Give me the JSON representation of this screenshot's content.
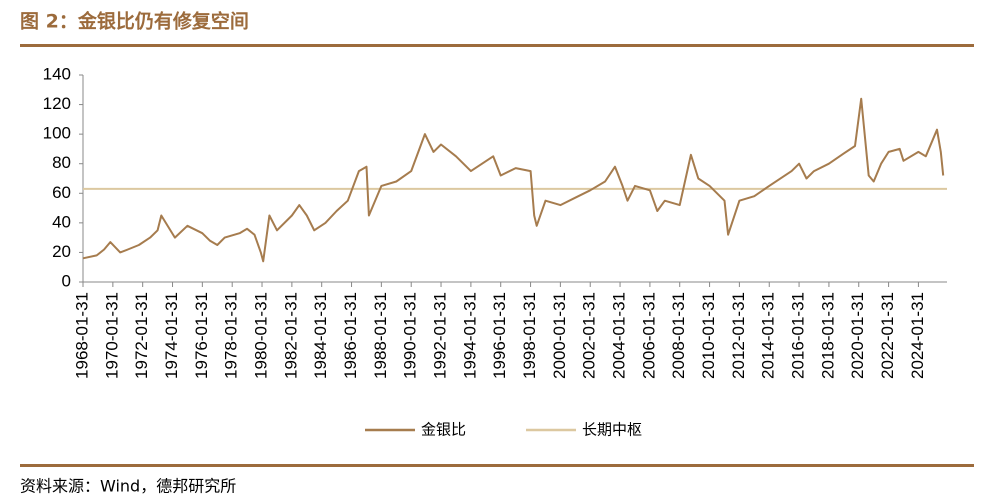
{
  "title": "图 2：金银比仍有修复空间",
  "source": "资料来源：Wind，德邦研究所",
  "chart_data": {
    "type": "line",
    "x": [
      "1968-01-31",
      "1968-12-31",
      "1969-06-30",
      "1969-11-30",
      "1970-07-31",
      "1971-01-31",
      "1971-10-31",
      "1972-07-31",
      "1973-01-31",
      "1973-04-30",
      "1974-03-31",
      "1975-01-31",
      "1976-01-31",
      "1976-07-31",
      "1977-01-31",
      "1977-07-31",
      "1978-07-31",
      "1979-01-31",
      "1979-07-31",
      "1979-12-31",
      "1980-02-29",
      "1980-07-31",
      "1981-01-31",
      "1982-01-31",
      "1982-07-31",
      "1983-01-31",
      "1983-07-31",
      "1984-04-30",
      "1985-01-31",
      "1985-10-31",
      "1986-07-31",
      "1987-01-31",
      "1987-03-31",
      "1988-01-31",
      "1989-01-31",
      "1990-01-31",
      "1990-12-31",
      "1991-07-31",
      "1992-01-31",
      "1993-01-31",
      "1994-01-31",
      "1995-07-31",
      "1996-01-31",
      "1997-01-31",
      "1998-01-31",
      "1998-04-30",
      "1998-06-30",
      "1999-01-31",
      "2000-01-31",
      "2001-01-31",
      "2002-01-31",
      "2003-01-31",
      "2003-09-30",
      "2004-03-31",
      "2004-07-31",
      "2005-01-31",
      "2006-01-31",
      "2006-07-31",
      "2007-01-31",
      "2008-01-31",
      "2008-10-31",
      "2009-04-30",
      "2010-01-31",
      "2011-01-31",
      "2011-04-30",
      "2012-01-31",
      "2013-01-31",
      "2014-01-31",
      "2015-07-31",
      "2016-01-31",
      "2016-07-31",
      "2017-01-31",
      "2018-01-31",
      "2019-01-31",
      "2019-10-31",
      "2020-03-31",
      "2020-09-30",
      "2021-01-31",
      "2021-07-31",
      "2022-01-31",
      "2022-10-31",
      "2023-01-31",
      "2024-01-31",
      "2024-07-31",
      "2025-04-30",
      "2025-07-31",
      "2025-09-30"
    ],
    "series": [
      {
        "name": "金银比",
        "color": "#a67c4e",
        "values": [
          16,
          18,
          22,
          27,
          20,
          22,
          25,
          30,
          35,
          45,
          30,
          38,
          33,
          28,
          25,
          30,
          33,
          36,
          32,
          20,
          14,
          45,
          35,
          45,
          52,
          45,
          35,
          40,
          48,
          55,
          75,
          78,
          45,
          65,
          68,
          75,
          100,
          88,
          93,
          85,
          75,
          85,
          72,
          77,
          75,
          45,
          38,
          55,
          52,
          57,
          62,
          68,
          78,
          65,
          55,
          65,
          62,
          48,
          55,
          52,
          86,
          70,
          65,
          55,
          32,
          55,
          58,
          65,
          75,
          80,
          70,
          75,
          80,
          87,
          92,
          124,
          72,
          68,
          80,
          88,
          90,
          82,
          88,
          85,
          103,
          88,
          72
        ]
      }
    ],
    "reference_lines": [
      {
        "name": "长期中枢",
        "value": 63,
        "color": "#dcc8a0"
      }
    ],
    "xlim": [
      "1968-01-31",
      "2025-12-31"
    ],
    "xticks": [
      "1968-01-31",
      "1970-01-31",
      "1972-01-31",
      "1974-01-31",
      "1976-01-31",
      "1978-01-31",
      "1980-01-31",
      "1982-01-31",
      "1984-01-31",
      "1986-01-31",
      "1988-01-31",
      "1990-01-31",
      "1992-01-31",
      "1994-01-31",
      "1996-01-31",
      "1998-01-31",
      "2000-01-31",
      "2002-01-31",
      "2004-01-31",
      "2006-01-31",
      "2008-01-31",
      "2010-01-31",
      "2012-01-31",
      "2014-01-31",
      "2016-01-31",
      "2018-01-31",
      "2020-01-31",
      "2022-01-31",
      "2024-01-31"
    ],
    "ylim": [
      0,
      140
    ],
    "yticks": [
      0,
      20,
      40,
      60,
      80,
      100,
      120,
      140
    ]
  }
}
